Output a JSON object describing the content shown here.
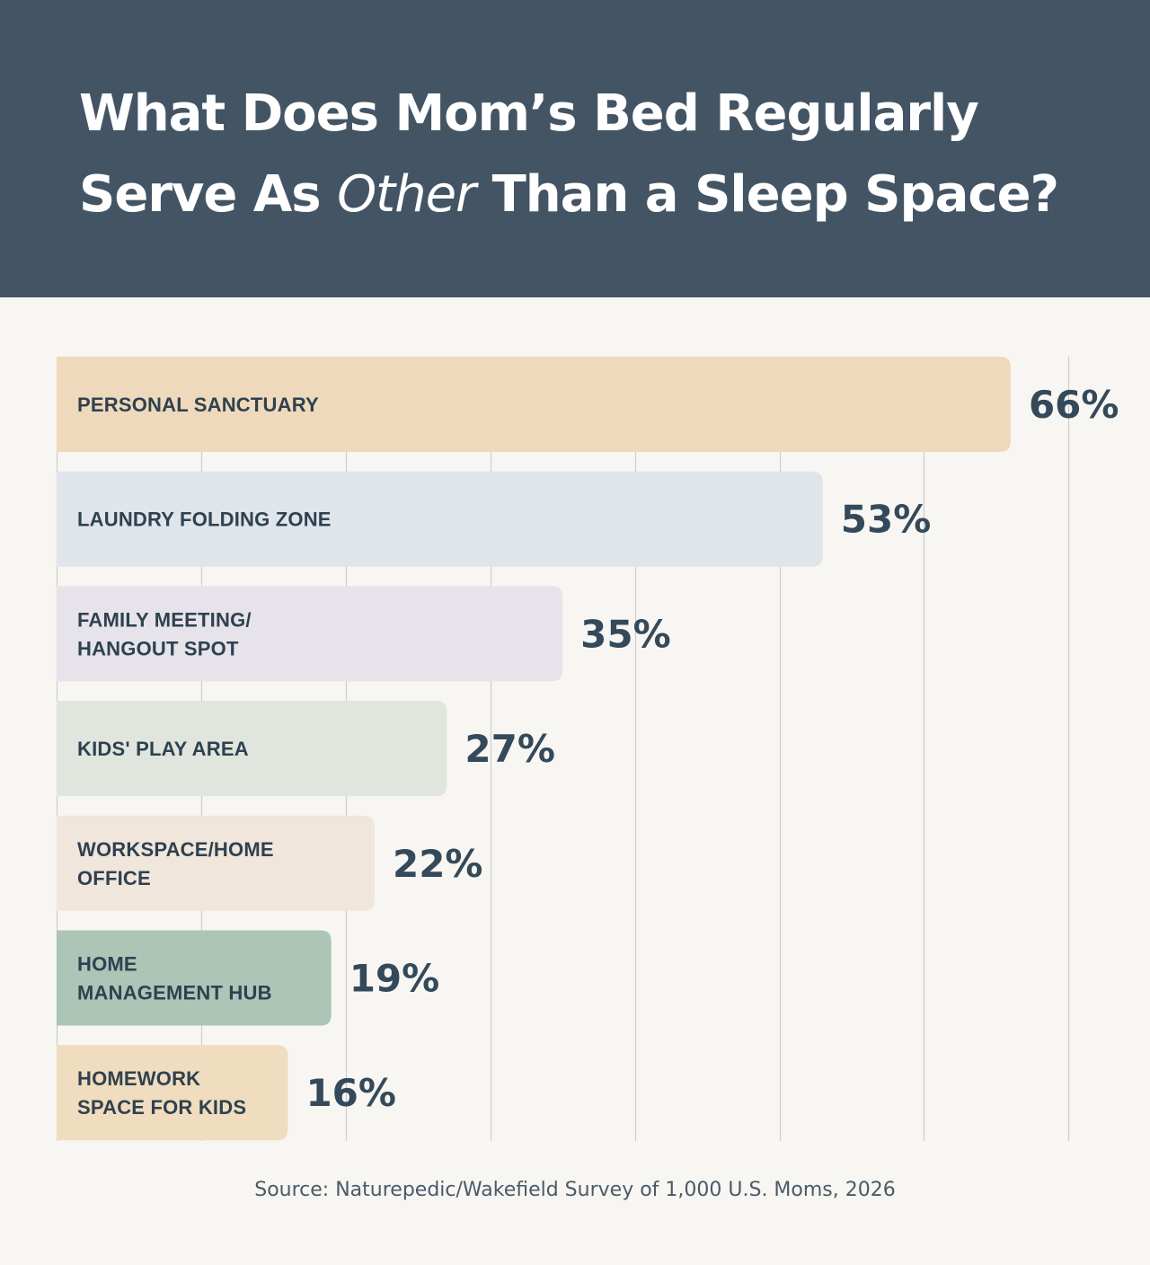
{
  "title": {
    "part1": "What Does Mom’s Bed Regularly",
    "part2_before": "Serve As ",
    "part2_em": "Other",
    "part2_after": " Than a Sleep Space?"
  },
  "source": "Source: Naturepedic/Wakefield Survey of 1,000 U.S. Moms, 2026",
  "chart_data": {
    "type": "bar",
    "orientation": "horizontal",
    "title": "What Does Mom’s Bed Regularly Serve As Other Than a Sleep Space?",
    "unit": "%",
    "xlim": [
      0,
      70
    ],
    "grid": true,
    "categories": [
      [
        "PERSONAL SANCTUARY"
      ],
      [
        "LAUNDRY FOLDING ZONE"
      ],
      [
        "FAMILY MEETING/",
        "HANGOUT SPOT"
      ],
      [
        "KIDS' PLAY AREA"
      ],
      [
        "WORKSPACE/HOME",
        "OFFICE"
      ],
      [
        "HOME",
        "MANAGEMENT HUB"
      ],
      [
        "HOMEWORK",
        "SPACE FOR KIDS"
      ]
    ],
    "values": [
      66,
      53,
      35,
      27,
      22,
      19,
      16
    ],
    "value_labels": [
      "66%",
      "53%",
      "35%",
      "27%",
      "22%",
      "19%",
      "16%"
    ],
    "colors": [
      "#eed9bc",
      "#dfe5ea",
      "#e7e3ea",
      "#e0e6de",
      "#f0e6db",
      "#abc5b7",
      "#f0dcbe"
    ],
    "grid_color": "#cfcdc8"
  }
}
